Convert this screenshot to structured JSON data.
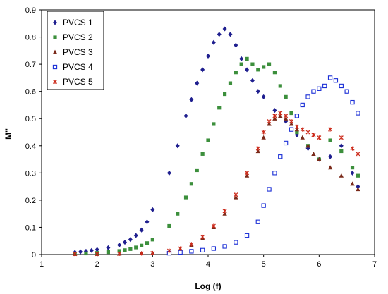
{
  "chart_data": {
    "type": "scatter",
    "title": "",
    "xlabel": "Log (f)",
    "ylabel": "M''",
    "xlim": [
      1,
      7
    ],
    "ylim": [
      0,
      0.9
    ],
    "xticks": [
      "1",
      "2",
      "3",
      "4",
      "5",
      "6",
      "7"
    ],
    "yticks": [
      "0",
      "0.1",
      "0.2",
      "0.3",
      "0.4",
      "0.5",
      "0.6",
      "0.7",
      "0.8",
      "0.9"
    ],
    "grid": false,
    "legend_position": "top-left",
    "series": [
      {
        "name": "PVCS 1",
        "color": "#1f1f8f",
        "marker": "diamond",
        "points": [
          [
            1.6,
            0.008
          ],
          [
            1.7,
            0.01
          ],
          [
            1.8,
            0.012
          ],
          [
            1.9,
            0.015
          ],
          [
            2.0,
            0.018
          ],
          [
            2.2,
            0.025
          ],
          [
            2.4,
            0.035
          ],
          [
            2.5,
            0.045
          ],
          [
            2.6,
            0.055
          ],
          [
            2.7,
            0.07
          ],
          [
            2.8,
            0.09
          ],
          [
            2.9,
            0.12
          ],
          [
            3.0,
            0.165
          ],
          [
            3.3,
            0.3
          ],
          [
            3.45,
            0.4
          ],
          [
            3.6,
            0.51
          ],
          [
            3.7,
            0.57
          ],
          [
            3.8,
            0.63
          ],
          [
            3.9,
            0.68
          ],
          [
            4.0,
            0.73
          ],
          [
            4.1,
            0.78
          ],
          [
            4.2,
            0.81
          ],
          [
            4.3,
            0.83
          ],
          [
            4.4,
            0.81
          ],
          [
            4.5,
            0.77
          ],
          [
            4.6,
            0.72
          ],
          [
            4.7,
            0.68
          ],
          [
            4.8,
            0.64
          ],
          [
            4.9,
            0.6
          ],
          [
            5.0,
            0.58
          ],
          [
            5.2,
            0.53
          ],
          [
            5.4,
            0.49
          ],
          [
            5.6,
            0.44
          ],
          [
            5.8,
            0.39
          ],
          [
            6.0,
            0.35
          ],
          [
            6.2,
            0.36
          ],
          [
            6.4,
            0.4
          ],
          [
            6.6,
            0.3
          ],
          [
            6.7,
            0.25
          ]
        ]
      },
      {
        "name": "PVCS 2",
        "color": "#3c8f3c",
        "marker": "square",
        "points": [
          [
            1.6,
            0.003
          ],
          [
            1.8,
            0.004
          ],
          [
            2.0,
            0.006
          ],
          [
            2.2,
            0.009
          ],
          [
            2.4,
            0.013
          ],
          [
            2.5,
            0.016
          ],
          [
            2.6,
            0.02
          ],
          [
            2.7,
            0.026
          ],
          [
            2.8,
            0.033
          ],
          [
            2.9,
            0.042
          ],
          [
            3.0,
            0.055
          ],
          [
            3.3,
            0.105
          ],
          [
            3.45,
            0.15
          ],
          [
            3.6,
            0.21
          ],
          [
            3.7,
            0.26
          ],
          [
            3.8,
            0.31
          ],
          [
            3.9,
            0.37
          ],
          [
            4.0,
            0.42
          ],
          [
            4.1,
            0.48
          ],
          [
            4.2,
            0.54
          ],
          [
            4.3,
            0.59
          ],
          [
            4.4,
            0.63
          ],
          [
            4.5,
            0.67
          ],
          [
            4.6,
            0.7
          ],
          [
            4.7,
            0.72
          ],
          [
            4.8,
            0.7
          ],
          [
            4.9,
            0.68
          ],
          [
            5.0,
            0.69
          ],
          [
            5.1,
            0.7
          ],
          [
            5.2,
            0.67
          ],
          [
            5.3,
            0.62
          ],
          [
            5.4,
            0.58
          ],
          [
            5.5,
            0.52
          ],
          [
            5.6,
            0.45
          ],
          [
            5.8,
            0.4
          ],
          [
            6.0,
            0.35
          ],
          [
            6.2,
            0.42
          ],
          [
            6.4,
            0.38
          ],
          [
            6.6,
            0.32
          ],
          [
            6.7,
            0.29
          ]
        ]
      },
      {
        "name": "PVCS 3",
        "color": "#7a2a1a",
        "marker": "triangle",
        "points": [
          [
            1.6,
            0.002
          ],
          [
            2.0,
            0.002
          ],
          [
            2.4,
            0.003
          ],
          [
            2.8,
            0.004
          ],
          [
            3.0,
            0.005
          ],
          [
            3.3,
            0.012
          ],
          [
            3.5,
            0.02
          ],
          [
            3.7,
            0.035
          ],
          [
            3.9,
            0.06
          ],
          [
            4.1,
            0.1
          ],
          [
            4.3,
            0.15
          ],
          [
            4.5,
            0.21
          ],
          [
            4.7,
            0.29
          ],
          [
            4.9,
            0.38
          ],
          [
            5.0,
            0.43
          ],
          [
            5.1,
            0.48
          ],
          [
            5.2,
            0.5
          ],
          [
            5.3,
            0.51
          ],
          [
            5.4,
            0.5
          ],
          [
            5.5,
            0.48
          ],
          [
            5.6,
            0.46
          ],
          [
            5.7,
            0.43
          ],
          [
            5.8,
            0.4
          ],
          [
            5.9,
            0.37
          ],
          [
            6.0,
            0.35
          ],
          [
            6.2,
            0.32
          ],
          [
            6.4,
            0.29
          ],
          [
            6.6,
            0.26
          ],
          [
            6.7,
            0.24
          ]
        ]
      },
      {
        "name": "PVCS 4",
        "color": "#1a2ed6",
        "marker": "square-open",
        "points": [
          [
            3.3,
            0.005
          ],
          [
            3.5,
            0.008
          ],
          [
            3.7,
            0.012
          ],
          [
            3.9,
            0.016
          ],
          [
            4.1,
            0.022
          ],
          [
            4.3,
            0.03
          ],
          [
            4.5,
            0.045
          ],
          [
            4.7,
            0.07
          ],
          [
            4.9,
            0.12
          ],
          [
            5.0,
            0.18
          ],
          [
            5.1,
            0.24
          ],
          [
            5.2,
            0.3
          ],
          [
            5.3,
            0.36
          ],
          [
            5.4,
            0.41
          ],
          [
            5.5,
            0.46
          ],
          [
            5.6,
            0.51
          ],
          [
            5.7,
            0.55
          ],
          [
            5.8,
            0.58
          ],
          [
            5.9,
            0.6
          ],
          [
            6.0,
            0.61
          ],
          [
            6.1,
            0.62
          ],
          [
            6.2,
            0.65
          ],
          [
            6.3,
            0.64
          ],
          [
            6.4,
            0.62
          ],
          [
            6.5,
            0.6
          ],
          [
            6.6,
            0.56
          ],
          [
            6.7,
            0.52
          ]
        ]
      },
      {
        "name": "PVCS 5",
        "color": "#cc2a1a",
        "marker": "star",
        "points": [
          [
            1.6,
            0.002
          ],
          [
            2.0,
            0.002
          ],
          [
            2.4,
            0.003
          ],
          [
            2.8,
            0.004
          ],
          [
            3.0,
            0.005
          ],
          [
            3.3,
            0.014
          ],
          [
            3.5,
            0.022
          ],
          [
            3.7,
            0.038
          ],
          [
            3.9,
            0.065
          ],
          [
            4.1,
            0.105
          ],
          [
            4.3,
            0.16
          ],
          [
            4.5,
            0.22
          ],
          [
            4.7,
            0.3
          ],
          [
            4.9,
            0.39
          ],
          [
            5.0,
            0.45
          ],
          [
            5.1,
            0.49
          ],
          [
            5.2,
            0.51
          ],
          [
            5.3,
            0.52
          ],
          [
            5.4,
            0.51
          ],
          [
            5.5,
            0.49
          ],
          [
            5.6,
            0.47
          ],
          [
            5.7,
            0.46
          ],
          [
            5.8,
            0.45
          ],
          [
            5.9,
            0.44
          ],
          [
            6.0,
            0.43
          ],
          [
            6.2,
            0.46
          ],
          [
            6.4,
            0.43
          ],
          [
            6.6,
            0.39
          ],
          [
            6.7,
            0.37
          ]
        ]
      }
    ]
  }
}
